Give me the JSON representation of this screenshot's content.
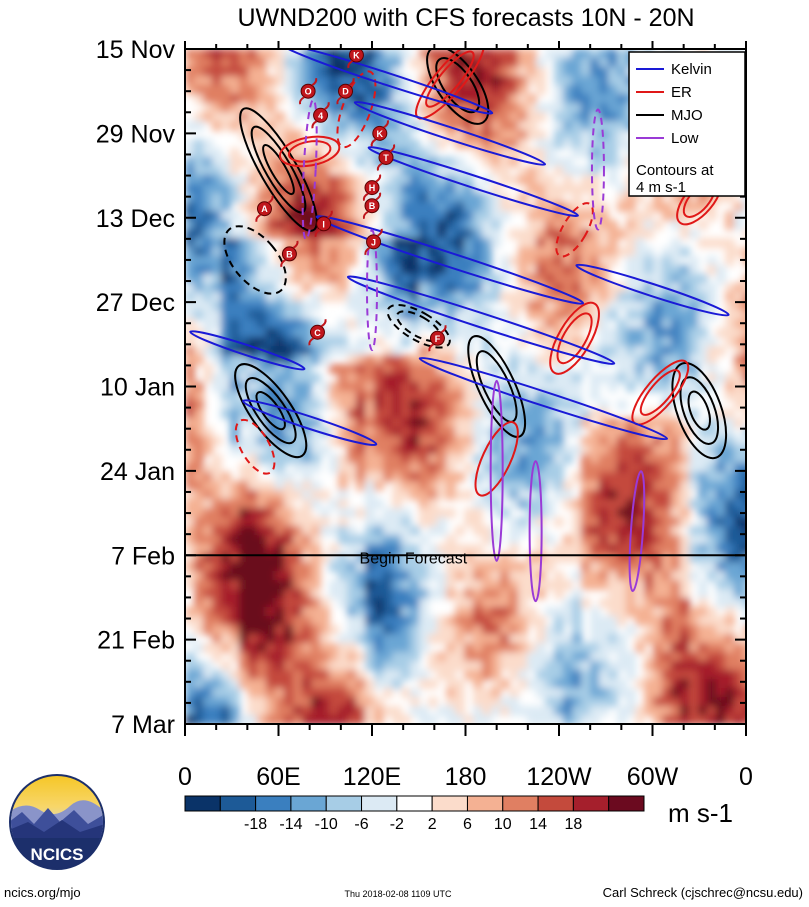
{
  "chart_data": {
    "type": "heatmap",
    "title": "UWND200 with CFS forecasts  10N - 20N",
    "y_ticks": [
      "15 Nov",
      "29 Nov",
      "13 Dec",
      "27 Dec",
      "10 Jan",
      "24 Jan",
      "7 Feb",
      "21 Feb",
      "7 Mar"
    ],
    "x_ticks": [
      "0",
      "60E",
      "120E",
      "180",
      "120W",
      "60W",
      "0"
    ],
    "forecast_label": "Begin Forecast",
    "forecast_date": "7 Feb",
    "legend": {
      "placement": "top-right",
      "items": [
        {
          "name": "Kelvin",
          "color": "#1a1ad6"
        },
        {
          "name": "ER",
          "color": "#e01818"
        },
        {
          "name": "MJO",
          "color": "#000000"
        },
        {
          "name": "Low",
          "color": "#9a3ad6"
        }
      ],
      "note_line1": "Contours at",
      "note_line2": "4 m s-1"
    },
    "colorbar": {
      "labels": [
        "-18",
        "-14",
        "-10",
        "-6",
        "-2",
        "2",
        "6",
        "10",
        "14",
        "18"
      ],
      "colors": [
        "#0a3368",
        "#1d5a97",
        "#3a7fbf",
        "#6aa6d4",
        "#a7cde6",
        "#dceaf4",
        "#ffffff",
        "#fbdccb",
        "#f4b193",
        "#e07f62",
        "#c44a3c",
        "#a51f2c",
        "#6b0a1f"
      ],
      "unit": "m s-1"
    },
    "storms": [
      {
        "letter": "K",
        "lon": 110,
        "day": 1
      },
      {
        "letter": "O",
        "lon": 79,
        "day": 7
      },
      {
        "letter": "D",
        "lon": 103,
        "day": 7
      },
      {
        "letter": "4",
        "lon": 87,
        "day": 11
      },
      {
        "letter": "K",
        "lon": 125,
        "day": 14
      },
      {
        "letter": "T",
        "lon": 129,
        "day": 18
      },
      {
        "letter": "H",
        "lon": 120,
        "day": 23
      },
      {
        "letter": "B",
        "lon": 120,
        "day": 26
      },
      {
        "letter": "A",
        "lon": 51,
        "day": 26.5
      },
      {
        "letter": "I",
        "lon": 89,
        "day": 29
      },
      {
        "letter": "J",
        "lon": 121,
        "day": 32
      },
      {
        "letter": "B",
        "lon": 67,
        "day": 34
      },
      {
        "letter": "C",
        "lon": 85,
        "day": 47
      },
      {
        "letter": "F",
        "lon": 162,
        "day": 48
      }
    ]
  },
  "footer": {
    "logo_text": "NCICS",
    "url": "ncics.org/mjo",
    "timestamp": "Thu 2018-02-08 1109 UTC",
    "author": "Carl Schreck (cjschrec@ncsu.edu)"
  }
}
